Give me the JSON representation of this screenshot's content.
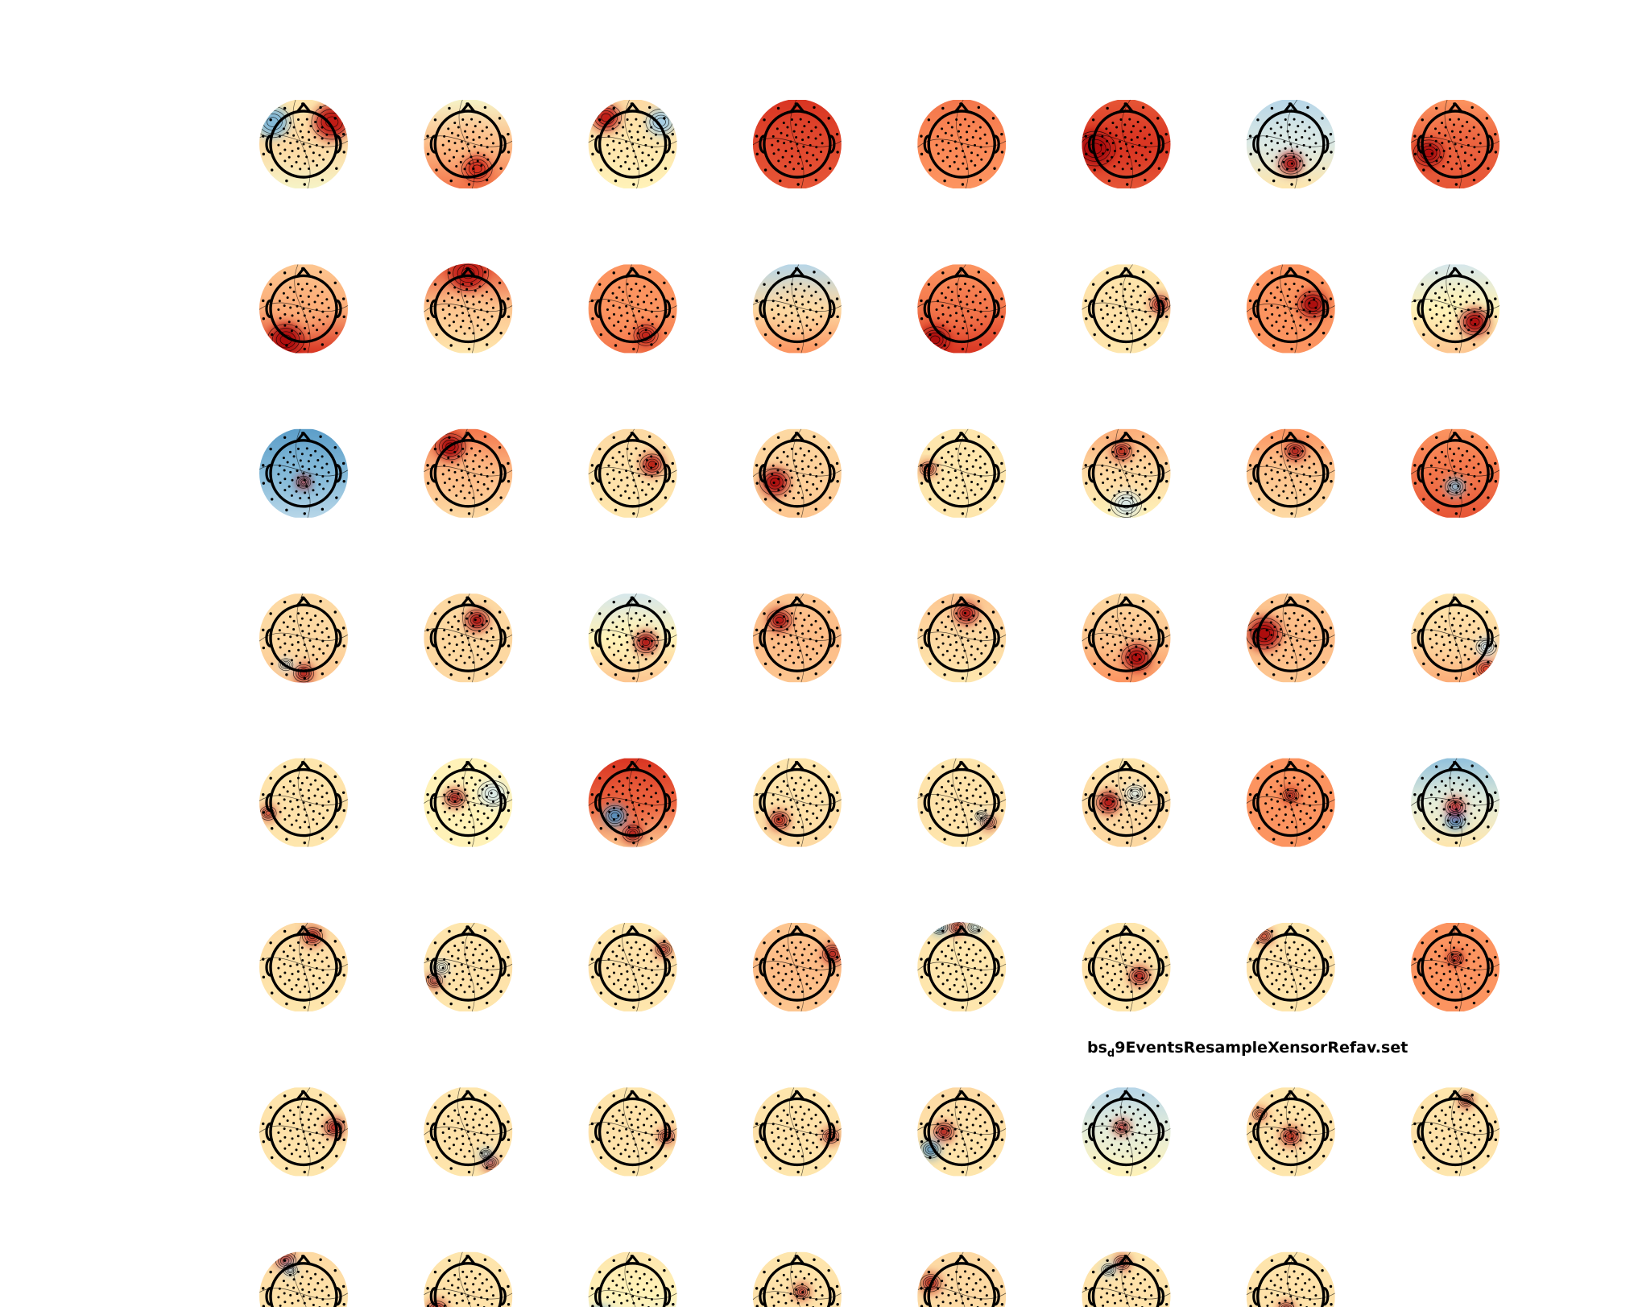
{
  "figure": {
    "title_prefix": "bs",
    "title_subscript": "d",
    "title_suffix": "9EventsResampleXensorRefav.set"
  },
  "colors": {
    "background": "#ffffff",
    "head_outline": "#000000",
    "colormap": [
      "#2166ac",
      "#67a9cf",
      "#d1e5f0",
      "#fff7bc",
      "#fdd49e",
      "#fc8d59",
      "#d7301f",
      "#990000"
    ]
  },
  "grid": {
    "rows": 8,
    "columns": 8,
    "map_count": 63
  },
  "topoplots": [
    {
      "base": 0.55,
      "top": 0.5,
      "bottom": 0.4,
      "blobs": [
        [
          0.15,
          0.25,
          -0.6,
          0.18
        ],
        [
          0.82,
          0.25,
          0.8,
          0.2
        ]
      ]
    },
    {
      "base": 0.62,
      "top": 0.4,
      "bottom": 0.75,
      "blobs": [
        [
          0.6,
          0.78,
          0.7,
          0.15
        ]
      ]
    },
    {
      "base": 0.5,
      "top": 0.55,
      "bottom": 0.45,
      "blobs": [
        [
          0.2,
          0.2,
          0.8,
          0.15
        ],
        [
          0.82,
          0.25,
          -0.5,
          0.15
        ]
      ]
    },
    {
      "base": 0.82,
      "top": 0.85,
      "bottom": 0.8,
      "blobs": []
    },
    {
      "base": 0.72,
      "top": 0.75,
      "bottom": 0.7,
      "blobs": []
    },
    {
      "base": 0.85,
      "top": 0.8,
      "bottom": 0.8,
      "blobs": [
        [
          0.15,
          0.55,
          0.9,
          0.2
        ]
      ]
    },
    {
      "base": 0.32,
      "top": 0.25,
      "bottom": 0.5,
      "blobs": [
        [
          0.5,
          0.72,
          0.9,
          0.12
        ]
      ]
    },
    {
      "base": 0.78,
      "top": 0.7,
      "bottom": 0.8,
      "blobs": [
        [
          0.2,
          0.6,
          0.9,
          0.15
        ]
      ]
    },
    {
      "base": 0.65,
      "top": 0.6,
      "bottom": 0.85,
      "blobs": [
        [
          0.3,
          0.85,
          0.9,
          0.18
        ]
      ]
    },
    {
      "base": 0.6,
      "top": 0.8,
      "bottom": 0.5,
      "blobs": [
        [
          0.5,
          0.1,
          0.8,
          0.2
        ]
      ]
    },
    {
      "base": 0.7,
      "top": 0.7,
      "bottom": 0.75,
      "blobs": [
        [
          0.65,
          0.8,
          0.8,
          0.12
        ]
      ]
    },
    {
      "base": 0.55,
      "top": 0.25,
      "bottom": 0.7,
      "blobs": []
    },
    {
      "base": 0.75,
      "top": 0.7,
      "bottom": 0.85,
      "blobs": [
        [
          0.2,
          0.85,
          0.9,
          0.15
        ]
      ]
    },
    {
      "base": 0.52,
      "top": 0.5,
      "bottom": 0.5,
      "blobs": [
        [
          0.88,
          0.45,
          0.8,
          0.1
        ]
      ]
    },
    {
      "base": 0.7,
      "top": 0.7,
      "bottom": 0.7,
      "blobs": [
        [
          0.75,
          0.45,
          0.9,
          0.15
        ]
      ]
    },
    {
      "base": 0.45,
      "top": 0.3,
      "bottom": 0.6,
      "blobs": [
        [
          0.72,
          0.65,
          0.9,
          0.15
        ]
      ]
    },
    {
      "base": 0.18,
      "top": 0.12,
      "bottom": 0.25,
      "blobs": [
        [
          0.5,
          0.6,
          0.9,
          0.07
        ]
      ]
    },
    {
      "base": 0.62,
      "top": 0.75,
      "bottom": 0.55,
      "blobs": [
        [
          0.3,
          0.2,
          0.9,
          0.15
        ]
      ]
    },
    {
      "base": 0.52,
      "top": 0.55,
      "bottom": 0.5,
      "blobs": [
        [
          0.72,
          0.4,
          0.85,
          0.12
        ]
      ]
    },
    {
      "base": 0.58,
      "top": 0.55,
      "bottom": 0.6,
      "blobs": [
        [
          0.25,
          0.6,
          0.9,
          0.15
        ]
      ]
    },
    {
      "base": 0.5,
      "top": 0.5,
      "bottom": 0.5,
      "blobs": [
        [
          0.12,
          0.45,
          0.75,
          0.08
        ]
      ]
    },
    {
      "base": 0.55,
      "top": 0.65,
      "bottom": 0.45,
      "blobs": [
        [
          0.45,
          0.25,
          0.85,
          0.1
        ],
        [
          0.5,
          0.85,
          -0.3,
          0.15
        ]
      ]
    },
    {
      "base": 0.6,
      "top": 0.7,
      "bottom": 0.55,
      "blobs": [
        [
          0.55,
          0.25,
          0.9,
          0.1
        ]
      ]
    },
    {
      "base": 0.75,
      "top": 0.7,
      "bottom": 0.8,
      "blobs": [
        [
          0.5,
          0.65,
          -0.6,
          0.1
        ]
      ]
    },
    {
      "base": 0.55,
      "top": 0.55,
      "bottom": 0.6,
      "blobs": [
        [
          0.5,
          0.9,
          0.9,
          0.1
        ],
        [
          0.3,
          0.8,
          -0.4,
          0.07
        ]
      ]
    },
    {
      "base": 0.56,
      "top": 0.55,
      "bottom": 0.55,
      "blobs": [
        [
          0.6,
          0.3,
          0.9,
          0.12
        ]
      ]
    },
    {
      "base": 0.45,
      "top": 0.3,
      "bottom": 0.6,
      "blobs": [
        [
          0.65,
          0.55,
          0.9,
          0.12
        ]
      ]
    },
    {
      "base": 0.62,
      "top": 0.6,
      "bottom": 0.6,
      "blobs": [
        [
          0.3,
          0.3,
          0.9,
          0.12
        ]
      ]
    },
    {
      "base": 0.55,
      "top": 0.6,
      "bottom": 0.5,
      "blobs": [
        [
          0.55,
          0.22,
          0.9,
          0.12
        ]
      ]
    },
    {
      "base": 0.6,
      "top": 0.55,
      "bottom": 0.7,
      "blobs": [
        [
          0.62,
          0.72,
          0.9,
          0.15
        ]
      ]
    },
    {
      "base": 0.62,
      "top": 0.6,
      "bottom": 0.6,
      "blobs": [
        [
          0.2,
          0.45,
          0.9,
          0.18
        ]
      ]
    },
    {
      "base": 0.55,
      "top": 0.5,
      "bottom": 0.65,
      "blobs": [
        [
          0.85,
          0.6,
          -0.4,
          0.1
        ],
        [
          0.85,
          0.85,
          0.7,
          0.1
        ]
      ]
    },
    {
      "base": 0.52,
      "top": 0.5,
      "bottom": 0.5,
      "blobs": [
        [
          0.1,
          0.62,
          0.8,
          0.08
        ]
      ]
    },
    {
      "base": 0.45,
      "top": 0.45,
      "bottom": 0.45,
      "blobs": [
        [
          0.35,
          0.45,
          0.9,
          0.1
        ],
        [
          0.78,
          0.4,
          -0.3,
          0.15
        ]
      ]
    },
    {
      "base": 0.78,
      "top": 0.85,
      "bottom": 0.6,
      "blobs": [
        [
          0.3,
          0.65,
          -0.8,
          0.12
        ],
        [
          0.5,
          0.85,
          0.9,
          0.1
        ]
      ]
    },
    {
      "base": 0.52,
      "top": 0.5,
      "bottom": 0.55,
      "blobs": [
        [
          0.3,
          0.7,
          0.85,
          0.1
        ]
      ]
    },
    {
      "base": 0.52,
      "top": 0.5,
      "bottom": 0.5,
      "blobs": [
        [
          0.8,
          0.72,
          0.85,
          0.08
        ],
        [
          0.72,
          0.65,
          -0.3,
          0.06
        ]
      ]
    },
    {
      "base": 0.55,
      "top": 0.5,
      "bottom": 0.55,
      "blobs": [
        [
          0.3,
          0.5,
          0.9,
          0.12
        ],
        [
          0.6,
          0.4,
          -0.3,
          0.1
        ]
      ]
    },
    {
      "base": 0.7,
      "top": 0.7,
      "bottom": 0.7,
      "blobs": [
        [
          0.5,
          0.42,
          0.85,
          0.08
        ]
      ]
    },
    {
      "base": 0.35,
      "top": 0.2,
      "bottom": 0.5,
      "blobs": [
        [
          0.5,
          0.7,
          -0.9,
          0.1
        ],
        [
          0.5,
          0.55,
          0.8,
          0.1
        ]
      ]
    },
    {
      "base": 0.52,
      "top": 0.55,
      "bottom": 0.5,
      "blobs": [
        [
          0.6,
          0.15,
          0.85,
          0.1
        ]
      ]
    },
    {
      "base": 0.52,
      "top": 0.5,
      "bottom": 0.5,
      "blobs": [
        [
          0.12,
          0.65,
          0.9,
          0.08
        ],
        [
          0.2,
          0.5,
          -0.3,
          0.08
        ]
      ]
    },
    {
      "base": 0.52,
      "top": 0.5,
      "bottom": 0.5,
      "blobs": [
        [
          0.85,
          0.3,
          0.9,
          0.08
        ]
      ]
    },
    {
      "base": 0.62,
      "top": 0.6,
      "bottom": 0.6,
      "blobs": [
        [
          0.9,
          0.35,
          0.9,
          0.1
        ]
      ]
    },
    {
      "base": 0.5,
      "top": 0.5,
      "bottom": 0.5,
      "blobs": [
        [
          0.25,
          0.05,
          -0.7,
          0.08
        ],
        [
          0.45,
          0.05,
          0.8,
          0.08
        ],
        [
          0.65,
          0.05,
          -0.5,
          0.07
        ]
      ]
    },
    {
      "base": 0.52,
      "top": 0.5,
      "bottom": 0.5,
      "blobs": [
        [
          0.65,
          0.6,
          0.9,
          0.1
        ]
      ]
    },
    {
      "base": 0.52,
      "top": 0.5,
      "bottom": 0.5,
      "blobs": [
        [
          0.2,
          0.15,
          0.8,
          0.08
        ]
      ]
    },
    {
      "base": 0.7,
      "top": 0.7,
      "bottom": 0.7,
      "blobs": [
        [
          0.5,
          0.4,
          0.9,
          0.08
        ]
      ]
    },
    {
      "base": 0.52,
      "top": 0.5,
      "bottom": 0.5,
      "blobs": [
        [
          0.85,
          0.45,
          0.9,
          0.1
        ]
      ]
    },
    {
      "base": 0.52,
      "top": 0.5,
      "bottom": 0.5,
      "blobs": [
        [
          0.75,
          0.85,
          0.9,
          0.08
        ],
        [
          0.7,
          0.75,
          -0.6,
          0.06
        ]
      ]
    },
    {
      "base": 0.52,
      "top": 0.5,
      "bottom": 0.5,
      "blobs": [
        [
          0.88,
          0.55,
          0.8,
          0.08
        ]
      ]
    },
    {
      "base": 0.52,
      "top": 0.5,
      "bottom": 0.5,
      "blobs": [
        [
          0.88,
          0.55,
          0.8,
          0.08
        ]
      ]
    },
    {
      "base": 0.52,
      "top": 0.55,
      "bottom": 0.5,
      "blobs": [
        [
          0.3,
          0.5,
          0.9,
          0.1
        ],
        [
          0.15,
          0.7,
          -0.8,
          0.1
        ]
      ]
    },
    {
      "base": 0.35,
      "top": 0.25,
      "bottom": 0.45,
      "blobs": [
        [
          0.45,
          0.45,
          0.85,
          0.08
        ]
      ]
    },
    {
      "base": 0.52,
      "top": 0.5,
      "bottom": 0.5,
      "blobs": [
        [
          0.5,
          0.55,
          0.85,
          0.1
        ],
        [
          0.15,
          0.3,
          0.7,
          0.07
        ]
      ]
    },
    {
      "base": 0.52,
      "top": 0.5,
      "bottom": 0.5,
      "blobs": [
        [
          0.62,
          0.15,
          0.9,
          0.07
        ]
      ]
    },
    {
      "base": 0.52,
      "top": 0.55,
      "bottom": 0.5,
      "blobs": [
        [
          0.3,
          0.1,
          0.9,
          0.1
        ],
        [
          0.35,
          0.2,
          -0.5,
          0.07
        ]
      ]
    },
    {
      "base": 0.52,
      "top": 0.5,
      "bottom": 0.5,
      "blobs": [
        [
          0.15,
          0.65,
          0.85,
          0.1
        ]
      ]
    },
    {
      "base": 0.45,
      "top": 0.5,
      "bottom": 0.3,
      "blobs": [
        [
          0.15,
          0.75,
          -0.8,
          0.12
        ],
        [
          0.4,
          0.95,
          0.8,
          0.08
        ]
      ]
    },
    {
      "base": 0.52,
      "top": 0.5,
      "bottom": 0.5,
      "blobs": [
        [
          0.55,
          0.45,
          0.85,
          0.08
        ]
      ]
    },
    {
      "base": 0.55,
      "top": 0.55,
      "bottom": 0.5,
      "blobs": [
        [
          0.15,
          0.35,
          0.85,
          0.1
        ]
      ]
    },
    {
      "base": 0.52,
      "top": 0.5,
      "bottom": 0.5,
      "blobs": [
        [
          0.45,
          0.12,
          0.9,
          0.08
        ],
        [
          0.3,
          0.2,
          -0.5,
          0.07
        ]
      ]
    },
    {
      "base": 0.52,
      "top": 0.5,
      "bottom": 0.5,
      "blobs": [
        [
          0.45,
          0.65,
          0.9,
          0.08
        ]
      ]
    }
  ]
}
